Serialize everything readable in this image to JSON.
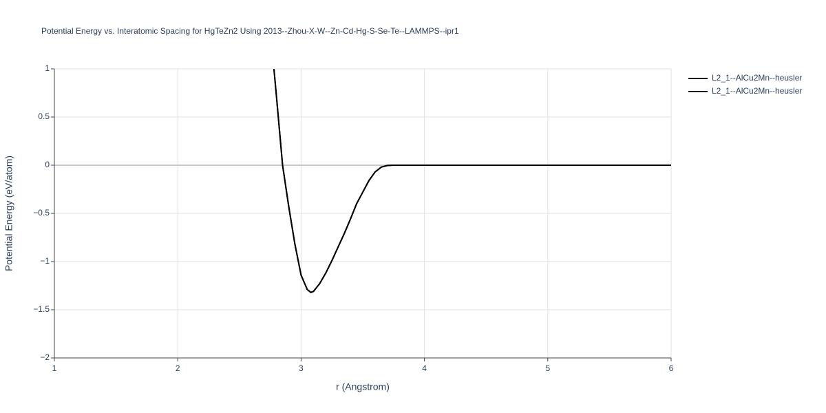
{
  "chart_data": {
    "type": "line",
    "title": "Potential Energy vs. Interatomic Spacing for HgTeZn2 Using 2013--Zhou-X-W--Zn-Cd-Hg-S-Se-Te--LAMMPS--ipr1",
    "x_label": "r (Angstrom)",
    "y_label": "Potential Energy (eV/atom)",
    "x": [
      2.78,
      2.8,
      2.85,
      2.9,
      2.95,
      3.0,
      3.05,
      3.08,
      3.1,
      3.15,
      3.2,
      3.25,
      3.3,
      3.35,
      3.4,
      3.45,
      3.5,
      3.55,
      3.6,
      3.65,
      3.7,
      3.75,
      4.0,
      5.0,
      6.0
    ],
    "series": [
      {
        "name": "L2_1--AlCu2Mn--heusler",
        "color": "#000000",
        "values": [
          1.0,
          0.72,
          0.0,
          -0.43,
          -0.82,
          -1.14,
          -1.29,
          -1.32,
          -1.31,
          -1.23,
          -1.12,
          -0.99,
          -0.85,
          -0.71,
          -0.56,
          -0.4,
          -0.28,
          -0.16,
          -0.07,
          -0.02,
          -0.003,
          0.0,
          0.0,
          0.0,
          0.0
        ]
      },
      {
        "name": "L2_1--AlCu2Mn--heusler",
        "color": "#000000",
        "values": [
          1.0,
          0.72,
          0.0,
          -0.43,
          -0.82,
          -1.14,
          -1.29,
          -1.32,
          -1.31,
          -1.23,
          -1.12,
          -0.99,
          -0.85,
          -0.71,
          -0.56,
          -0.4,
          -0.28,
          -0.16,
          -0.07,
          -0.02,
          -0.003,
          0.0,
          0.0,
          0.0,
          0.0
        ]
      }
    ],
    "xlim": [
      1,
      6
    ],
    "xticks": [
      1,
      2,
      3,
      4,
      5,
      6
    ],
    "ylim": [
      -2,
      1
    ],
    "yticks": [
      {
        "value": -2,
        "label": "−2"
      },
      {
        "value": -1.5,
        "label": "−1.5"
      },
      {
        "value": -1,
        "label": "−1"
      },
      {
        "value": -0.5,
        "label": "−0.5"
      },
      0,
      0.5,
      1
    ],
    "grid": true
  }
}
